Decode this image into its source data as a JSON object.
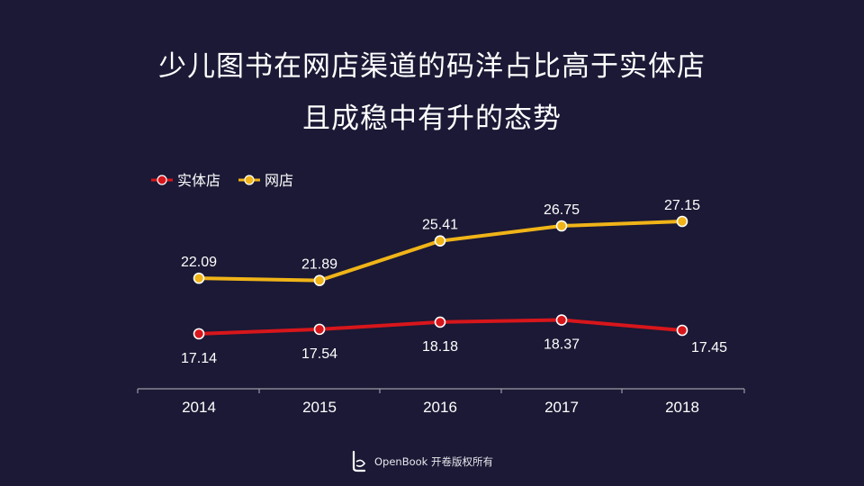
{
  "title": {
    "line1": "少儿图书在网店渠道的码洋占比高于实体店",
    "line2": "且成稳中有升的态势"
  },
  "footer": {
    "brand": "OpenBook 开卷版权所有",
    "logo_icon": "openbook-logo-icon"
  },
  "colors": {
    "background": "#1b1935",
    "series_store": "#d7161b",
    "series_online": "#f0b418",
    "axis": "#9a9aa8",
    "label": "#ffffff"
  },
  "chart_data": {
    "type": "line",
    "x": [
      "2014",
      "2015",
      "2016",
      "2017",
      "2018"
    ],
    "series": [
      {
        "name": "实体店",
        "values": [
          17.14,
          17.54,
          18.18,
          18.37,
          17.45
        ]
      },
      {
        "name": "网店",
        "values": [
          22.09,
          21.89,
          25.41,
          26.75,
          27.15
        ]
      }
    ],
    "xlabel": "",
    "ylabel": "",
    "legend_position": "top-left",
    "grid": false,
    "y_axis_visible": false,
    "data_labels": true
  }
}
